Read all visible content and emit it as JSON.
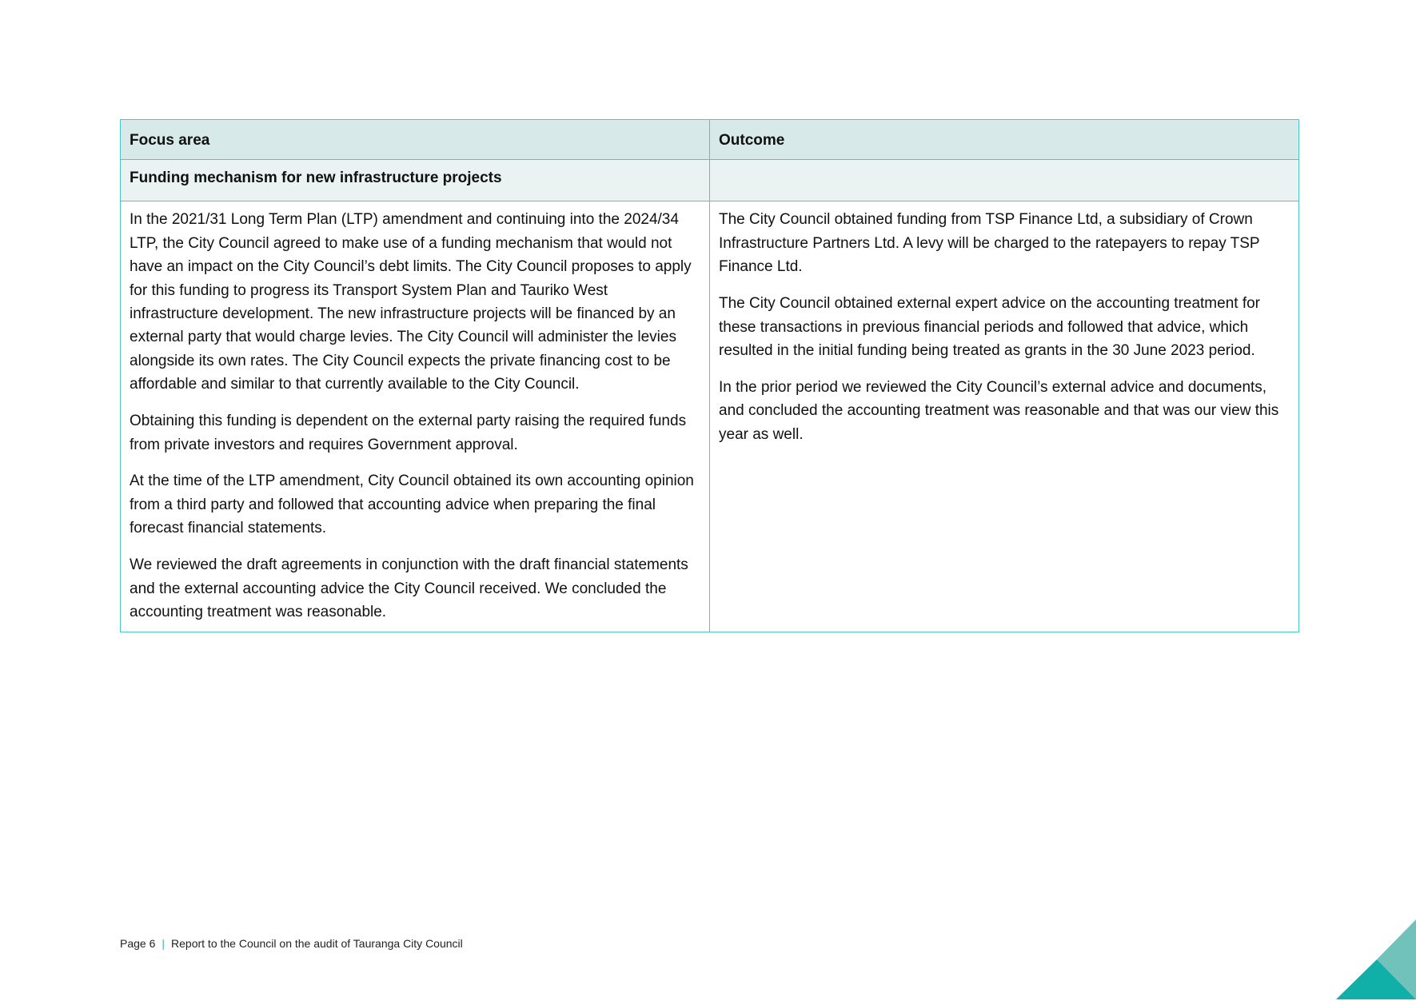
{
  "table": {
    "headers": [
      "Focus area",
      "Outcome"
    ],
    "section_title": "Funding mechanism for new infrastructure projects",
    "focus_paragraphs": [
      "In the 2021/31 Long Term Plan (LTP) amendment and continuing into the 2024/34 LTP, the City Council agreed to make use of a funding mechanism that would not have an impact on the City Council’s debt limits. The City Council proposes to apply for this funding to progress its Transport System Plan and Tauriko West infrastructure development. The new infrastructure projects will be financed by an external party that would charge levies. The City Council will administer the levies alongside its own rates. The City Council expects the private financing cost to be affordable and similar to that currently available to the City Council.",
      "Obtaining this funding is dependent on the external party raising the required funds from private investors and requires Government approval.",
      "At the time of the LTP amendment, City Council obtained its own accounting opinion from a third party and followed that accounting advice when preparing the final forecast financial statements.",
      "We reviewed the draft agreements in conjunction with the draft financial statements and the external accounting advice the City Council received. We concluded the accounting treatment was reasonable."
    ],
    "outcome_paragraphs": [
      "The City Council obtained funding from TSP Finance Ltd, a subsidiary of Crown Infrastructure Partners Ltd. A levy will be charged to the ratepayers to repay TSP Finance Ltd.",
      "The City Council obtained external expert advice on the accounting treatment for these transactions in previous financial periods and followed that advice, which resulted in the initial funding being treated as grants in the 30 June 2023 period.",
      "In the prior period we reviewed the City Council’s external advice and documents, and concluded the accounting treatment was reasonable and that was our view this year as well."
    ]
  },
  "footer": {
    "page": "Page 6",
    "separator": "|",
    "title": "Report to the Council on the audit of Tauranga City Council"
  },
  "colors": {
    "border": "#4cc8c4",
    "header_bg": "#d7e9e8",
    "subheader_bg": "#eaf3f2",
    "corner_dark": "#10afa8",
    "corner_light": "#70c2bb"
  }
}
